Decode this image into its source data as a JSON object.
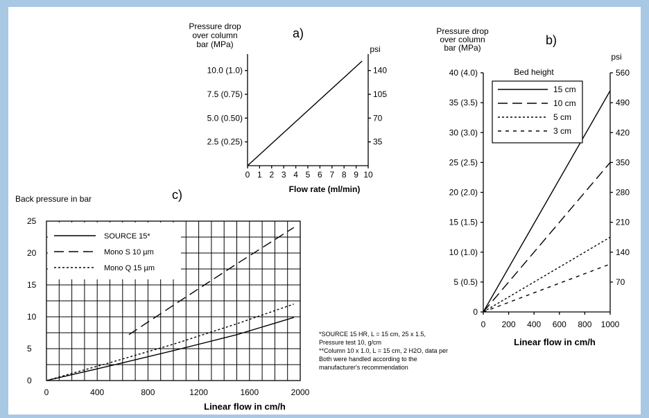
{
  "chart_data": [
    {
      "panel": "a)",
      "type": "line",
      "ylabel": "Pressure drop over column bar (MPa)",
      "ylabel_lines": [
        "Pressure drop",
        "over column",
        "bar (MPa)"
      ],
      "y2label": "psi",
      "xlabel": "Flow rate (ml/min)",
      "x_ticks": [
        "0",
        "1",
        "2",
        "3",
        "4",
        "5",
        "6",
        "7",
        "8",
        "9",
        "10"
      ],
      "y_ticks": [
        "2.5 (0.25)",
        "5.0 (0.50)",
        "7.5 (0.75)",
        "10.0 (1.0)"
      ],
      "y2_ticks": [
        "35",
        "70",
        "105",
        "140"
      ],
      "xlim": [
        0,
        10
      ],
      "ylim": [
        0,
        11
      ],
      "series": [
        {
          "x": [
            0,
            9.5
          ],
          "y": [
            0,
            11
          ]
        }
      ]
    },
    {
      "panel": "b)",
      "type": "line",
      "ylabel": "Pressure drop over column bar (MPa)",
      "ylabel_lines": [
        "Pressure drop",
        "over column",
        "bar (MPa)"
      ],
      "y2label": "psi",
      "xlabel": "Linear flow in cm/h",
      "legend_title": "Bed height",
      "x_ticks": [
        "0",
        "200",
        "400",
        "600",
        "800",
        "1000"
      ],
      "y_ticks": [
        "0",
        "5 (0.5)",
        "10 (1.0)",
        "15 (1.5)",
        "20 (2.0)",
        "25 (2.5)",
        "30 (3.0)",
        "35 (3.5)",
        "40 (4.0)"
      ],
      "y2_ticks": [
        "70",
        "140",
        "210",
        "280",
        "350",
        "420",
        "490",
        "560"
      ],
      "xlim": [
        0,
        1000
      ],
      "ylim": [
        0,
        40
      ],
      "series": [
        {
          "name": "15 cm",
          "style": "solid",
          "x": [
            0,
            1000
          ],
          "y": [
            0,
            37
          ]
        },
        {
          "name": "10 cm",
          "style": "dashed",
          "x": [
            0,
            1000
          ],
          "y": [
            0,
            25
          ]
        },
        {
          "name": "5 cm",
          "style": "dotted",
          "x": [
            0,
            1000
          ],
          "y": [
            0,
            12.5
          ]
        },
        {
          "name": "3 cm",
          "style": "dashdot",
          "x": [
            0,
            1000
          ],
          "y": [
            0,
            8
          ]
        }
      ]
    },
    {
      "panel": "c)",
      "type": "line",
      "title": "Back pressure in bar",
      "xlabel": "Linear flow in cm/h",
      "x_ticks": [
        "0",
        "400",
        "800",
        "1200",
        "1600",
        "2000"
      ],
      "y_ticks": [
        "0",
        "5",
        "10",
        "15",
        "20",
        "25"
      ],
      "xlim": [
        0,
        2000
      ],
      "ylim": [
        0,
        25
      ],
      "grid": true,
      "series": [
        {
          "name": "SOURCE 15*",
          "style": "solid",
          "x": [
            0,
            500,
            1000,
            1500,
            1950
          ],
          "y": [
            0,
            2.3,
            4.7,
            7.2,
            9.9
          ]
        },
        {
          "name": "Mono S 10 µm",
          "style": "dashed",
          "x": [
            650,
            1000,
            1500,
            1950
          ],
          "y": [
            7.2,
            11.8,
            18.3,
            24.0
          ]
        },
        {
          "name": "Mono Q 15 µm",
          "style": "dotted",
          "x": [
            0,
            500,
            1000,
            1500,
            1950
          ],
          "y": [
            0,
            2.8,
            5.7,
            8.9,
            12.0
          ]
        }
      ]
    }
  ],
  "panel_labels": {
    "a": "a)",
    "b": "b)",
    "c": "c)"
  },
  "footnote": {
    "lines": [
      "*SOURCE 15 HR, L = 15 cm, 25 x 1.5,",
      "Pressure test 10, g/cm",
      "**Column 10 x 1.0, L = 15 cm, 2 H2O, data per",
      "Both were handled according to the",
      "manufacturer's recommendation"
    ]
  }
}
